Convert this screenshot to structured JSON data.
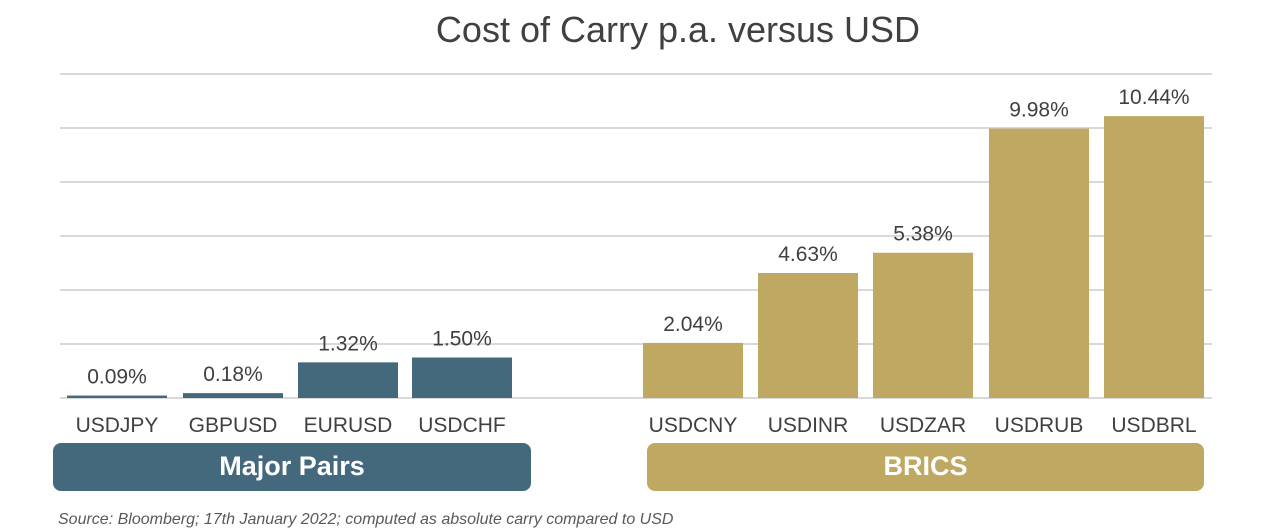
{
  "chart_data": {
    "type": "bar",
    "title": "Cost of Carry p.a. versus USD",
    "xlabel": "",
    "ylabel": "",
    "ylim": [
      0,
      12
    ],
    "grid": true,
    "categories": [
      "USDJPY",
      "GBPUSD",
      "EURUSD",
      "USDCHF",
      "USDCNY",
      "USDINR",
      "USDZAR",
      "USDRUB",
      "USDBRL"
    ],
    "values": [
      0.09,
      0.18,
      1.32,
      1.5,
      2.04,
      4.63,
      5.38,
      9.98,
      10.44
    ],
    "data_labels": [
      "0.09%",
      "0.18%",
      "1.32%",
      "1.50%",
      "2.04%",
      "4.63%",
      "5.38%",
      "9.98%",
      "10.44%"
    ],
    "groups": [
      {
        "name": "Major Pairs",
        "color": "#44697d",
        "members": [
          "USDJPY",
          "GBPUSD",
          "EURUSD",
          "USDCHF"
        ]
      },
      {
        "name": "BRICS",
        "color": "#bfa862",
        "members": [
          "USDCNY",
          "USDINR",
          "USDZAR",
          "USDRUB",
          "USDBRL"
        ]
      }
    ]
  },
  "footer": {
    "source": "Source: Bloomberg; 17th January 2022; computed as absolute carry compared to USD"
  }
}
